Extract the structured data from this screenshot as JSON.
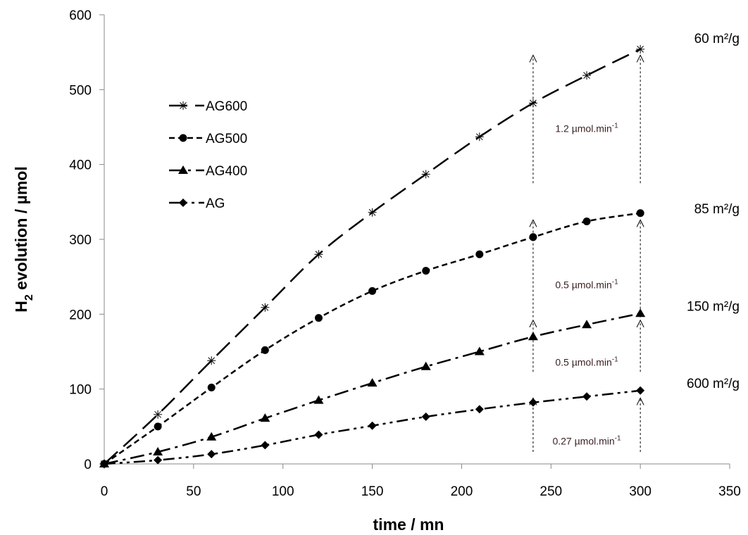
{
  "chart_data": {
    "type": "line",
    "xlabel": "time / mn",
    "ylabel_main": "H",
    "ylabel_sub": "2",
    "ylabel_rest": " evolution / µmol",
    "xlim": [
      0,
      350
    ],
    "ylim": [
      0,
      600
    ],
    "xticks": [
      0,
      50,
      100,
      150,
      200,
      250,
      300,
      350
    ],
    "yticks": [
      0,
      100,
      200,
      300,
      400,
      500,
      600
    ],
    "grid": false,
    "legend_position": "upper-left",
    "x": [
      0,
      30,
      60,
      90,
      120,
      150,
      180,
      210,
      240,
      270,
      300
    ],
    "series": [
      {
        "name": "AG600",
        "marker": "asterisk",
        "dash": "long-dash",
        "values": [
          0,
          66,
          138,
          209,
          280,
          336,
          387,
          437,
          482,
          519,
          554
        ],
        "surface_area": "60 m²/g",
        "rate": "1.2 µmol.min",
        "rate_sup": "-1"
      },
      {
        "name": "AG500",
        "marker": "circle",
        "dash": "short-dash",
        "values": [
          0,
          50,
          102,
          152,
          195,
          231,
          258,
          280,
          303,
          324,
          335
        ],
        "surface_area": "85 m²/g",
        "rate": "0.5 µmol.min",
        "rate_sup": "-1"
      },
      {
        "name": "AG400",
        "marker": "triangle",
        "dash": "dash-dot",
        "values": [
          0,
          16,
          36,
          61,
          85,
          108,
          130,
          150,
          170,
          186,
          201
        ],
        "surface_area": "150 m²/g",
        "rate": "0.5 µmol.min",
        "rate_sup": "-1"
      },
      {
        "name": "AG",
        "marker": "diamond",
        "dash": "dash-dot-dot",
        "values": [
          0,
          5,
          13,
          25,
          39,
          51,
          63,
          73,
          82,
          90,
          98
        ],
        "surface_area": "600 m²/g",
        "rate": "0.27 µmol.min",
        "rate_sup": "-1"
      }
    ],
    "annotations": {
      "arrow_x": [
        240,
        300
      ],
      "bands": [
        {
          "series": "AG600",
          "low": 375,
          "high": 546
        },
        {
          "series": "AG500",
          "low": 196,
          "high": 326
        },
        {
          "series": "AG400",
          "low": 123,
          "high": 192
        },
        {
          "series": "AG",
          "low": 16,
          "high": 88
        }
      ]
    }
  }
}
